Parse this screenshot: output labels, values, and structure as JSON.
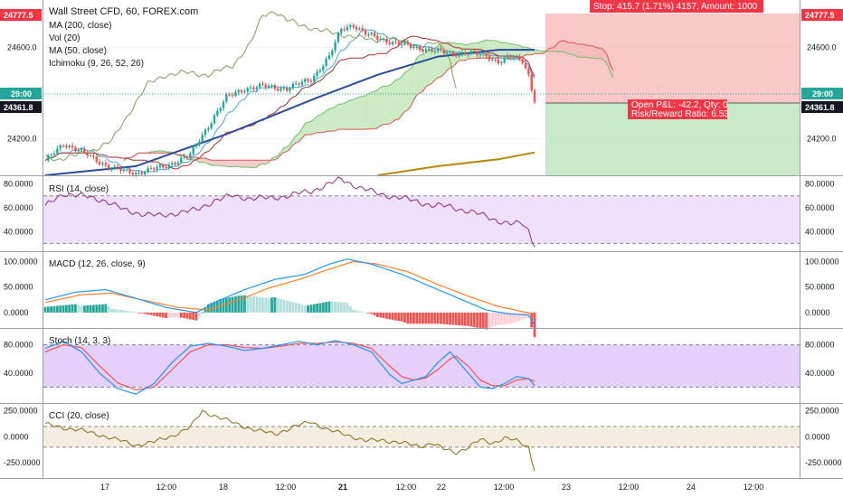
{
  "main_legend": {
    "title": "Wall Street CFD, 60, FOREX.com",
    "items": [
      "MA (200, close)",
      "Vol (20)",
      "MA (50, close)",
      "Ichimoku (9, 26, 52, 26)"
    ]
  },
  "price_tags": {
    "top": "24777.5",
    "dotted": "29:00",
    "current": "24361.8"
  },
  "position": {
    "stop_label": "Stop: 415.7 (1.71%) 4157, Amount: 1000",
    "pnl_label": "Open P&L: -42.2, Qty: 0",
    "rr_label": "Risk/Reward Ratio: 6.53"
  },
  "x_ticks": [
    "17",
    "12:00",
    "18",
    "12:00",
    "21",
    "12:00",
    "22",
    "12:00",
    "23",
    "12:00",
    "24",
    "12:00"
  ],
  "colors": {
    "up": "#26a69a",
    "down": "#ef5350",
    "ma200": "#b8860b",
    "ma50": "#2a4a9c",
    "tenkan": "#4aa8d8",
    "kijun": "#a0312a",
    "chikou": "#7ba05b",
    "cloud_bull": "#b6e3ad",
    "cloud_bear": "#f2b8b5",
    "rsi": "#8e2a8e",
    "rsi_band": "#efe1fb",
    "stoch_band": "#e5d0fb",
    "cci": "#8b6b1a",
    "cci_band": "#f4eee0",
    "macd": "#2196f3",
    "signal": "#ff7f2a"
  },
  "chart_data": [
    {
      "type": "line",
      "name": "price",
      "title": "Wall Street CFD, 60, FOREX.com",
      "y_ticks": [
        24200,
        24600
      ],
      "ylim": [
        24040,
        24800
      ],
      "close_anchors": [
        [
          0,
          24100
        ],
        [
          6,
          24180
        ],
        [
          14,
          24130
        ],
        [
          22,
          24070
        ],
        [
          30,
          24050
        ],
        [
          40,
          24080
        ],
        [
          48,
          24130
        ],
        [
          56,
          24300
        ],
        [
          60,
          24380
        ],
        [
          66,
          24420
        ],
        [
          72,
          24430
        ],
        [
          80,
          24420
        ],
        [
          88,
          24460
        ],
        [
          94,
          24560
        ],
        [
          98,
          24680
        ],
        [
          102,
          24700
        ],
        [
          106,
          24660
        ],
        [
          110,
          24640
        ],
        [
          116,
          24620
        ],
        [
          122,
          24600
        ],
        [
          128,
          24590
        ],
        [
          134,
          24570
        ],
        [
          140,
          24580
        ],
        [
          146,
          24560
        ],
        [
          150,
          24540
        ],
        [
          154,
          24560
        ],
        [
          158,
          24540
        ],
        [
          160,
          24480
        ],
        [
          162,
          24361.8
        ]
      ],
      "ma200": [
        [
          110,
          24040
        ],
        [
          130,
          24080
        ],
        [
          150,
          24110
        ],
        [
          162,
          24140
        ]
      ],
      "ma50": [
        [
          0,
          24040
        ],
        [
          30,
          24080
        ],
        [
          60,
          24220
        ],
        [
          90,
          24380
        ],
        [
          110,
          24480
        ],
        [
          130,
          24560
        ],
        [
          150,
          24590
        ],
        [
          162,
          24590
        ]
      ],
      "position": {
        "entry": 24361.8,
        "stop": 24777.5,
        "target": 24040
      }
    },
    {
      "type": "line",
      "name": "RSI (14, close)",
      "y_ticks": [
        40,
        60,
        80
      ],
      "ylim": [
        25,
        85
      ],
      "bands": [
        30,
        70
      ],
      "anchors": [
        [
          0,
          61
        ],
        [
          6,
          72
        ],
        [
          12,
          70
        ],
        [
          20,
          66
        ],
        [
          26,
          58
        ],
        [
          32,
          55
        ],
        [
          38,
          53
        ],
        [
          44,
          56
        ],
        [
          50,
          58
        ],
        [
          56,
          66
        ],
        [
          62,
          70
        ],
        [
          68,
          68
        ],
        [
          74,
          68
        ],
        [
          80,
          70
        ],
        [
          88,
          74
        ],
        [
          94,
          80
        ],
        [
          98,
          84
        ],
        [
          104,
          77
        ],
        [
          110,
          72
        ],
        [
          116,
          69
        ],
        [
          122,
          66
        ],
        [
          128,
          62
        ],
        [
          134,
          61
        ],
        [
          140,
          57
        ],
        [
          146,
          53
        ],
        [
          150,
          49
        ],
        [
          154,
          46
        ],
        [
          158,
          47
        ],
        [
          160,
          41
        ],
        [
          162,
          27
        ]
      ]
    },
    {
      "type": "line",
      "name": "MACD (12, 26, close, 9)",
      "y_ticks": [
        0,
        50,
        100
      ],
      "ylim": [
        -25,
        115
      ],
      "macd": [
        [
          0,
          25
        ],
        [
          10,
          40
        ],
        [
          20,
          45
        ],
        [
          30,
          28
        ],
        [
          40,
          10
        ],
        [
          50,
          0
        ],
        [
          58,
          25
        ],
        [
          66,
          45
        ],
        [
          76,
          65
        ],
        [
          86,
          75
        ],
        [
          94,
          95
        ],
        [
          100,
          105
        ],
        [
          108,
          95
        ],
        [
          118,
          75
        ],
        [
          128,
          50
        ],
        [
          138,
          25
        ],
        [
          146,
          5
        ],
        [
          154,
          -3
        ],
        [
          160,
          -5
        ],
        [
          162,
          -25
        ]
      ],
      "signal": [
        [
          0,
          20
        ],
        [
          12,
          35
        ],
        [
          22,
          38
        ],
        [
          32,
          25
        ],
        [
          44,
          10
        ],
        [
          54,
          5
        ],
        [
          64,
          25
        ],
        [
          74,
          48
        ],
        [
          84,
          65
        ],
        [
          94,
          85
        ],
        [
          102,
          100
        ],
        [
          110,
          95
        ],
        [
          120,
          80
        ],
        [
          130,
          55
        ],
        [
          140,
          32
        ],
        [
          150,
          12
        ],
        [
          158,
          2
        ],
        [
          162,
          -3
        ]
      ]
    },
    {
      "type": "line",
      "name": "Stoch (14, 3, 3)",
      "y_ticks": [
        40,
        80
      ],
      "ylim": [
        0,
        100
      ],
      "bands": [
        20,
        80
      ],
      "k": [
        [
          0,
          75
        ],
        [
          6,
          85
        ],
        [
          12,
          70
        ],
        [
          18,
          40
        ],
        [
          24,
          18
        ],
        [
          30,
          10
        ],
        [
          36,
          25
        ],
        [
          42,
          55
        ],
        [
          48,
          78
        ],
        [
          54,
          82
        ],
        [
          60,
          78
        ],
        [
          66,
          72
        ],
        [
          72,
          75
        ],
        [
          78,
          80
        ],
        [
          84,
          85
        ],
        [
          90,
          80
        ],
        [
          96,
          86
        ],
        [
          102,
          80
        ],
        [
          108,
          70
        ],
        [
          114,
          38
        ],
        [
          118,
          25
        ],
        [
          122,
          30
        ],
        [
          126,
          35
        ],
        [
          130,
          55
        ],
        [
          134,
          70
        ],
        [
          136,
          60
        ],
        [
          140,
          40
        ],
        [
          144,
          20
        ],
        [
          148,
          18
        ],
        [
          152,
          25
        ],
        [
          156,
          35
        ],
        [
          160,
          32
        ],
        [
          162,
          22
        ]
      ],
      "d": [
        [
          0,
          70
        ],
        [
          6,
          80
        ],
        [
          12,
          76
        ],
        [
          18,
          50
        ],
        [
          24,
          26
        ],
        [
          30,
          16
        ],
        [
          36,
          20
        ],
        [
          42,
          45
        ],
        [
          48,
          70
        ],
        [
          54,
          80
        ],
        [
          60,
          80
        ],
        [
          66,
          76
        ],
        [
          72,
          75
        ],
        [
          78,
          78
        ],
        [
          84,
          82
        ],
        [
          90,
          82
        ],
        [
          96,
          84
        ],
        [
          102,
          82
        ],
        [
          108,
          75
        ],
        [
          114,
          50
        ],
        [
          118,
          35
        ],
        [
          122,
          30
        ],
        [
          126,
          33
        ],
        [
          130,
          45
        ],
        [
          134,
          60
        ],
        [
          136,
          64
        ],
        [
          140,
          50
        ],
        [
          144,
          30
        ],
        [
          148,
          22
        ],
        [
          152,
          22
        ],
        [
          156,
          30
        ],
        [
          160,
          32
        ],
        [
          162,
          28
        ]
      ]
    },
    {
      "type": "line",
      "name": "CCI (20, close)",
      "y_ticks": [
        -250,
        0,
        250
      ],
      "ylim": [
        -380,
        300
      ],
      "bands": [
        -100,
        100
      ],
      "anchors": [
        [
          0,
          120
        ],
        [
          6,
          90
        ],
        [
          12,
          60
        ],
        [
          18,
          20
        ],
        [
          24,
          -30
        ],
        [
          30,
          -80
        ],
        [
          36,
          -50
        ],
        [
          42,
          10
        ],
        [
          48,
          90
        ],
        [
          52,
          250
        ],
        [
          58,
          180
        ],
        [
          64,
          120
        ],
        [
          70,
          60
        ],
        [
          76,
          30
        ],
        [
          82,
          90
        ],
        [
          88,
          150
        ],
        [
          94,
          60
        ],
        [
          100,
          20
        ],
        [
          106,
          -40
        ],
        [
          112,
          -30
        ],
        [
          118,
          -60
        ],
        [
          124,
          -90
        ],
        [
          128,
          -60
        ],
        [
          132,
          -120
        ],
        [
          136,
          -150
        ],
        [
          140,
          -100
        ],
        [
          144,
          -30
        ],
        [
          148,
          -60
        ],
        [
          152,
          -10
        ],
        [
          156,
          -40
        ],
        [
          160,
          -100
        ],
        [
          162,
          -330
        ]
      ]
    }
  ]
}
